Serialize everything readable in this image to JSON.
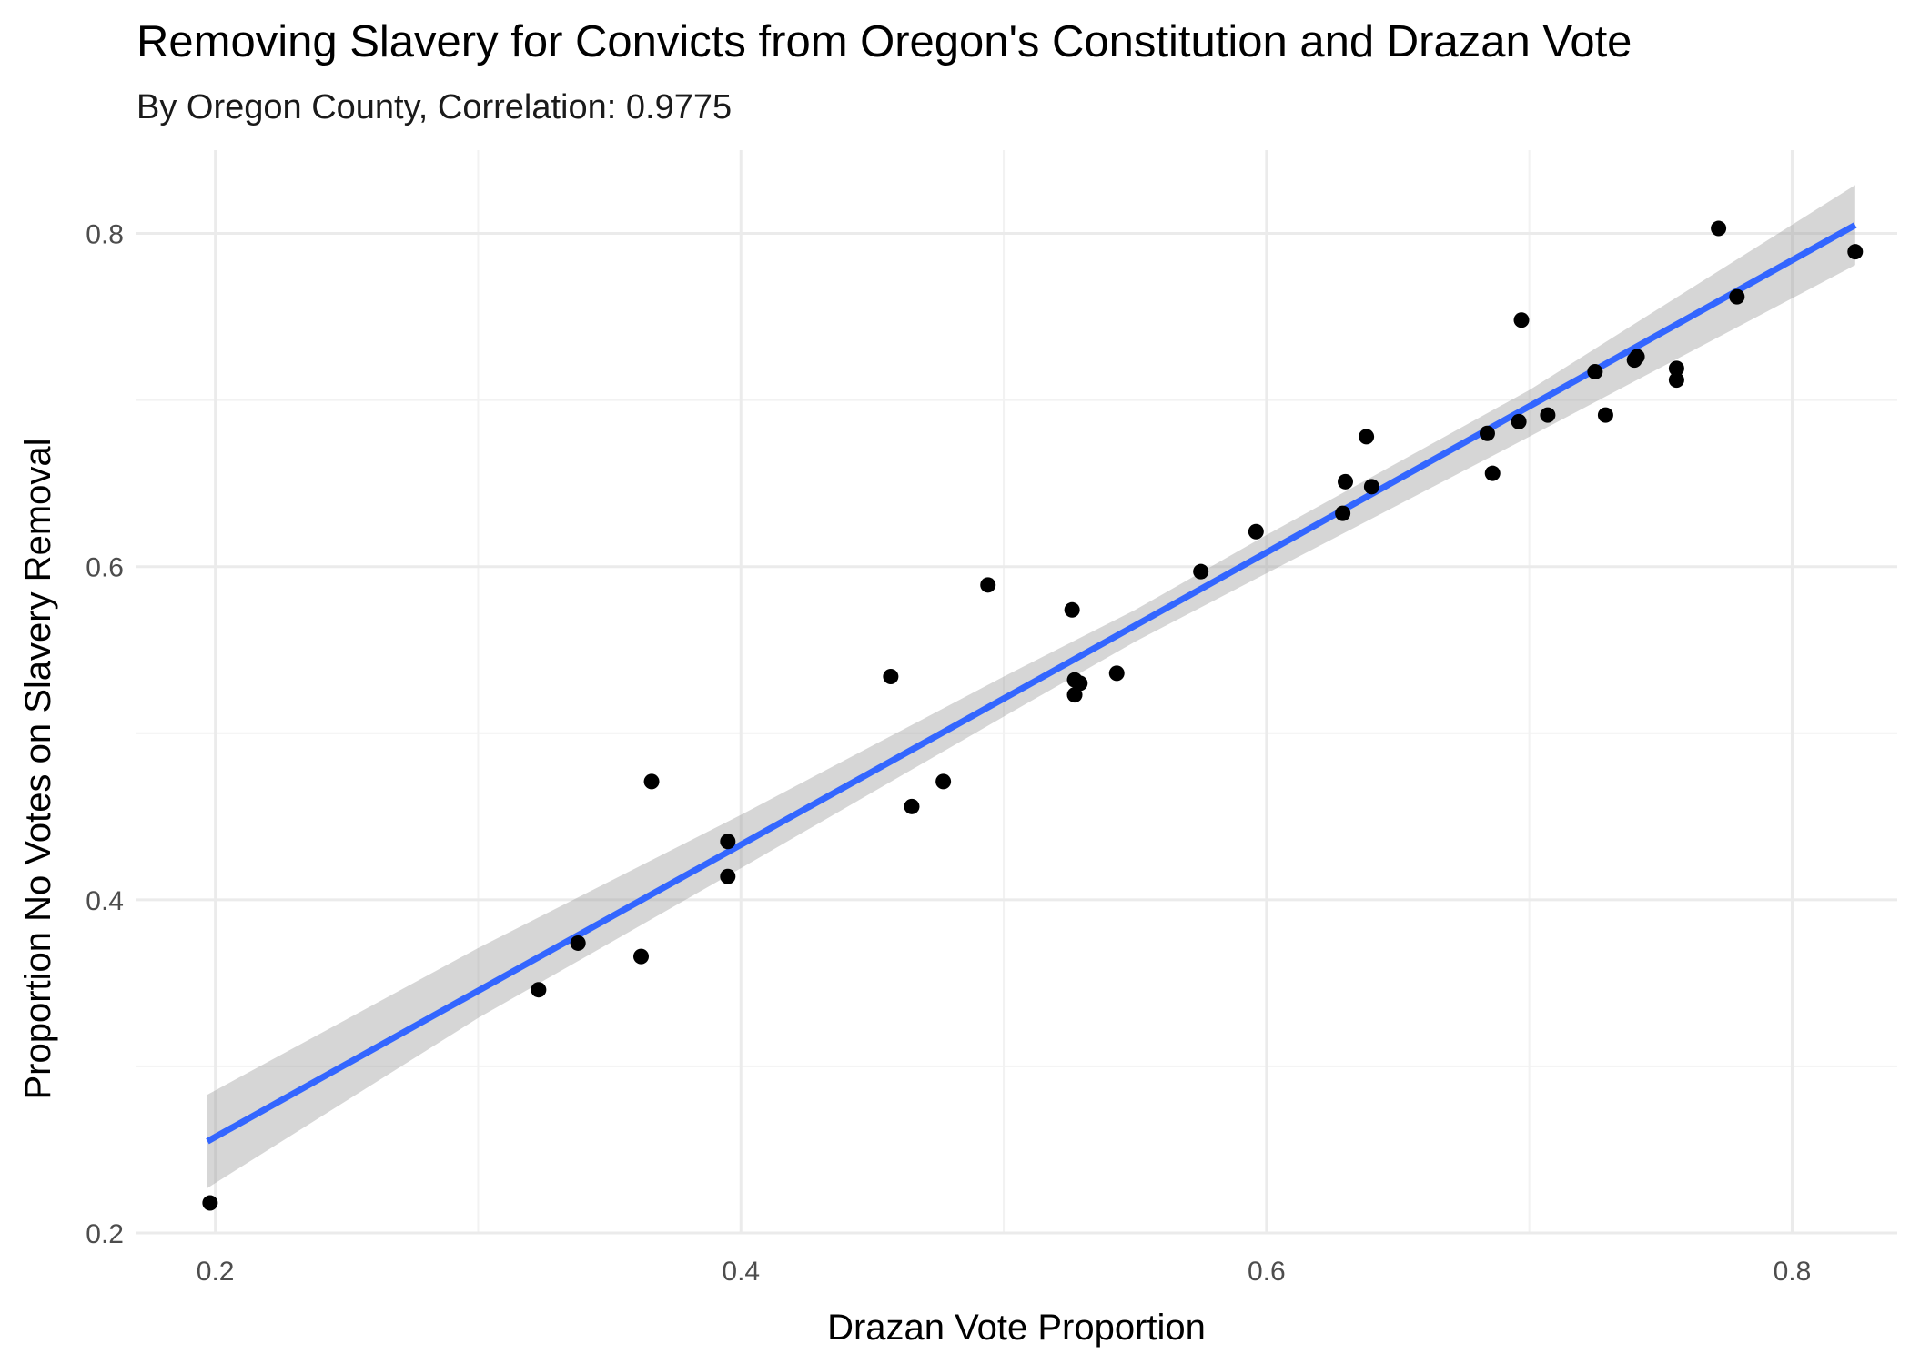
{
  "chart_data": {
    "type": "scatter",
    "title": "Removing Slavery for Convicts from Oregon's Constitution and Drazan Vote",
    "subtitle": "By Oregon County, Correlation: 0.9775",
    "xlabel": "Drazan Vote Proportion",
    "ylabel": "Proportion No Votes on Slavery Removal",
    "xlim": [
      0.17,
      0.84
    ],
    "ylim": [
      0.2,
      0.85
    ],
    "x_ticks": [
      "0.2",
      "0.4",
      "0.6",
      "0.8"
    ],
    "y_ticks": [
      "0.2",
      "0.4",
      "0.6",
      "0.8"
    ],
    "grid": true,
    "colors": {
      "points": "#000000",
      "trend_line": "#3366FF",
      "confidence_band": "#999999",
      "grid": "#EBEBEB",
      "background": "#FFFFFF"
    },
    "trend_line": {
      "x": [
        0.197,
        0.824
      ],
      "y": [
        0.255,
        0.805
      ]
    },
    "confidence_band": {
      "x": [
        0.197,
        0.3,
        0.4,
        0.5,
        0.55,
        0.6,
        0.7,
        0.824
      ],
      "upper": [
        0.283,
        0.371,
        0.451,
        0.534,
        0.574,
        0.619,
        0.706,
        0.829
      ],
      "lower": [
        0.227,
        0.329,
        0.419,
        0.51,
        0.555,
        0.596,
        0.678,
        0.781
      ]
    },
    "points": [
      {
        "x": 0.198,
        "y": 0.218
      },
      {
        "x": 0.323,
        "y": 0.346
      },
      {
        "x": 0.338,
        "y": 0.374
      },
      {
        "x": 0.362,
        "y": 0.366
      },
      {
        "x": 0.366,
        "y": 0.471
      },
      {
        "x": 0.395,
        "y": 0.435
      },
      {
        "x": 0.395,
        "y": 0.414
      },
      {
        "x": 0.457,
        "y": 0.534
      },
      {
        "x": 0.465,
        "y": 0.456
      },
      {
        "x": 0.477,
        "y": 0.471
      },
      {
        "x": 0.494,
        "y": 0.589
      },
      {
        "x": 0.526,
        "y": 0.574
      },
      {
        "x": 0.527,
        "y": 0.523
      },
      {
        "x": 0.527,
        "y": 0.532
      },
      {
        "x": 0.529,
        "y": 0.53
      },
      {
        "x": 0.543,
        "y": 0.536
      },
      {
        "x": 0.575,
        "y": 0.597
      },
      {
        "x": 0.596,
        "y": 0.621
      },
      {
        "x": 0.629,
        "y": 0.632
      },
      {
        "x": 0.63,
        "y": 0.651
      },
      {
        "x": 0.638,
        "y": 0.678
      },
      {
        "x": 0.64,
        "y": 0.648
      },
      {
        "x": 0.684,
        "y": 0.68
      },
      {
        "x": 0.686,
        "y": 0.656
      },
      {
        "x": 0.696,
        "y": 0.687
      },
      {
        "x": 0.697,
        "y": 0.748
      },
      {
        "x": 0.707,
        "y": 0.691
      },
      {
        "x": 0.725,
        "y": 0.717
      },
      {
        "x": 0.729,
        "y": 0.691
      },
      {
        "x": 0.74,
        "y": 0.724
      },
      {
        "x": 0.741,
        "y": 0.726
      },
      {
        "x": 0.756,
        "y": 0.712
      },
      {
        "x": 0.756,
        "y": 0.719
      },
      {
        "x": 0.772,
        "y": 0.803
      },
      {
        "x": 0.779,
        "y": 0.762
      },
      {
        "x": 0.824,
        "y": 0.789
      }
    ]
  }
}
